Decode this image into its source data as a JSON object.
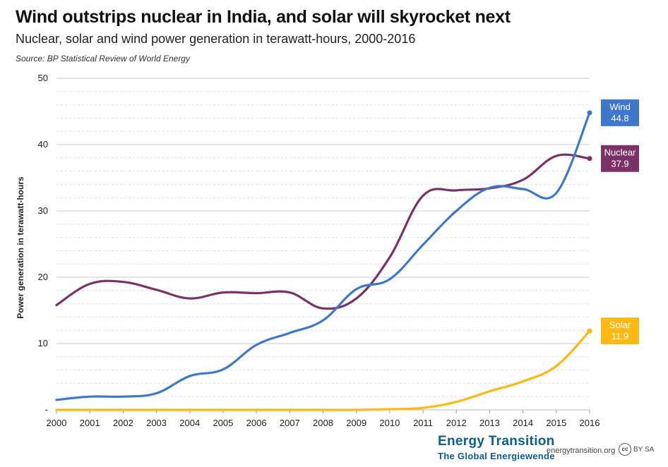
{
  "header": {
    "title": "Wind outstrips nuclear in India, and solar will skyrocket next",
    "subtitle": "Nuclear, solar and wind power generation in terawatt-hours, 2000-2016",
    "source": "Source: BP Statistical Review of World Energy"
  },
  "footer": {
    "brand_line1": "Energy Transition",
    "brand_line2": "The Global Energiewende",
    "site": "energytransition.org",
    "license_symbol": "cc",
    "license_text": "BY SA"
  },
  "chart_data": {
    "type": "line",
    "ylabel": "Power generation in terawatt-hours",
    "xlabel": "",
    "ylim": [
      0,
      50
    ],
    "y_ticks": [
      {
        "value": 0,
        "label": "-"
      },
      {
        "value": 10,
        "label": "10"
      },
      {
        "value": 20,
        "label": "20"
      },
      {
        "value": 30,
        "label": "30"
      },
      {
        "value": 40,
        "label": "40"
      },
      {
        "value": 50,
        "label": "50"
      }
    ],
    "grid": true,
    "legend": "right end labels",
    "x": [
      2000,
      2001,
      2002,
      2003,
      2004,
      2005,
      2006,
      2007,
      2008,
      2009,
      2010,
      2011,
      2012,
      2013,
      2014,
      2015,
      2016
    ],
    "x_tick_labels": [
      "2000",
      "2001",
      "2002",
      "2003",
      "2004",
      "2005",
      "2006",
      "2007",
      "2008",
      "2009",
      "2010",
      "2011",
      "2012",
      "2013",
      "2014",
      "2015",
      "2016"
    ],
    "series": [
      {
        "name": "Nuclear",
        "color": "#7b3367",
        "value_label": "37.9",
        "values": [
          15.8,
          19.0,
          19.3,
          18.1,
          16.8,
          17.7,
          17.6,
          17.7,
          15.3,
          16.8,
          23.0,
          32.3,
          33.1,
          33.4,
          34.7,
          38.3,
          37.9
        ]
      },
      {
        "name": "Wind",
        "color": "#3d78cd",
        "value_label": "44.8",
        "values": [
          1.5,
          2.0,
          2.0,
          2.5,
          5.1,
          6.1,
          9.8,
          11.6,
          13.5,
          18.2,
          19.7,
          24.9,
          30.0,
          33.5,
          33.3,
          32.7,
          44.8
        ]
      },
      {
        "name": "Solar",
        "color": "#fdb913",
        "value_label": "11.9",
        "values": [
          0,
          0,
          0,
          0,
          0,
          0,
          0,
          0,
          0,
          0,
          0.1,
          0.3,
          1.2,
          2.8,
          4.3,
          6.6,
          11.9
        ]
      }
    ]
  }
}
